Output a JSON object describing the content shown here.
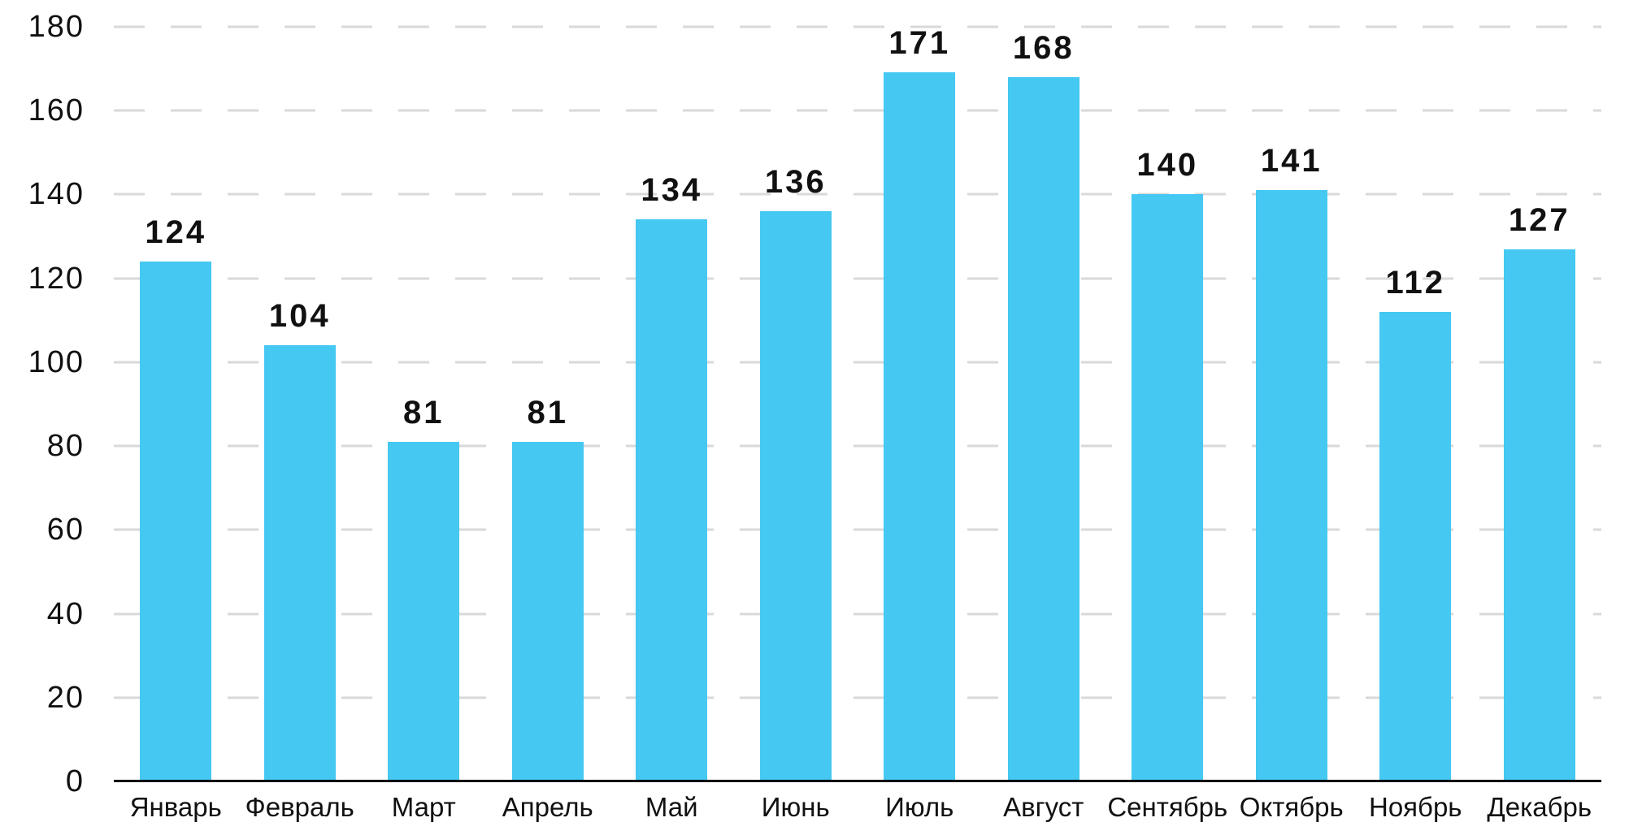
{
  "chart_data": {
    "type": "bar",
    "title": "",
    "categories": [
      "Январь",
      "Февраль",
      "Март",
      "Апрель",
      "Май",
      "Июнь",
      "Июль",
      "Август",
      "Сентябрь",
      "Октябрь",
      "Ноябрь",
      "Декабрь"
    ],
    "values": [
      124,
      104,
      81,
      81,
      134,
      136,
      171,
      168,
      140,
      141,
      112,
      127
    ],
    "xlabel": "",
    "ylabel": "",
    "ylim": [
      0,
      180
    ],
    "y_ticks": [
      0,
      20,
      40,
      60,
      80,
      100,
      120,
      140,
      160,
      180
    ],
    "grid": "horizontal-dashed",
    "legend_position": "none",
    "data_labels": "above-bars",
    "colors": {
      "bar": "#45C8F2",
      "grid": "#D9D9D9",
      "axis": "#000000",
      "text": "#111111",
      "background": "#FFFFFF"
    }
  }
}
